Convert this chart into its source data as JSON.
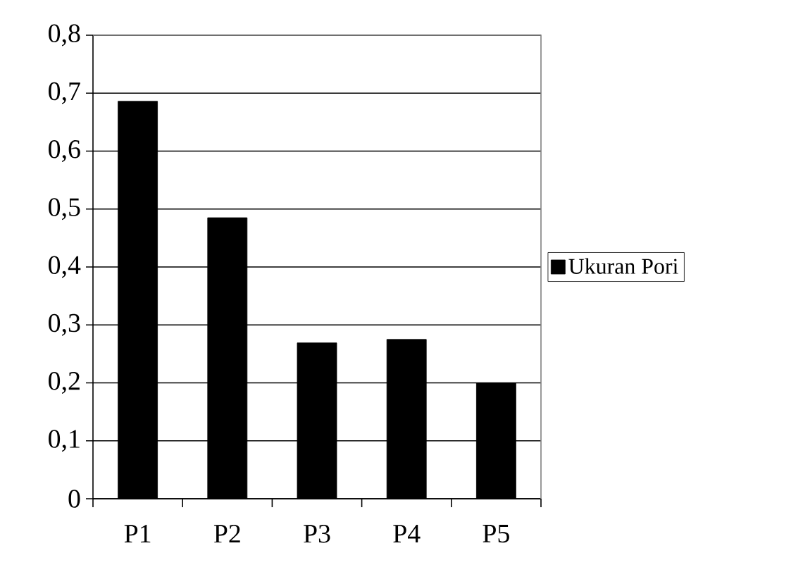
{
  "chart_data": {
    "type": "bar",
    "categories": [
      "P1",
      "P2",
      "P3",
      "P4",
      "P5"
    ],
    "series": [
      {
        "name": "Ukuran Pori",
        "color": "#000000",
        "values": [
          0.686,
          0.485,
          0.269,
          0.275,
          0.2
        ]
      }
    ],
    "ylim": [
      0,
      0.8
    ],
    "yticks": [
      0,
      {
        "value": 0.1,
        "label": "0,1"
      },
      {
        "value": 0.2,
        "label": "0,2"
      },
      {
        "value": 0.3,
        "label": "0,3"
      },
      {
        "value": 0.4,
        "label": "0,4"
      },
      {
        "value": 0.5,
        "label": "0,5"
      },
      {
        "value": 0.6,
        "label": "0,6"
      },
      {
        "value": 0.7,
        "label": "0,7"
      },
      {
        "value": 0.8,
        "label": "0,8"
      }
    ],
    "grid": "y",
    "legend": "right"
  }
}
